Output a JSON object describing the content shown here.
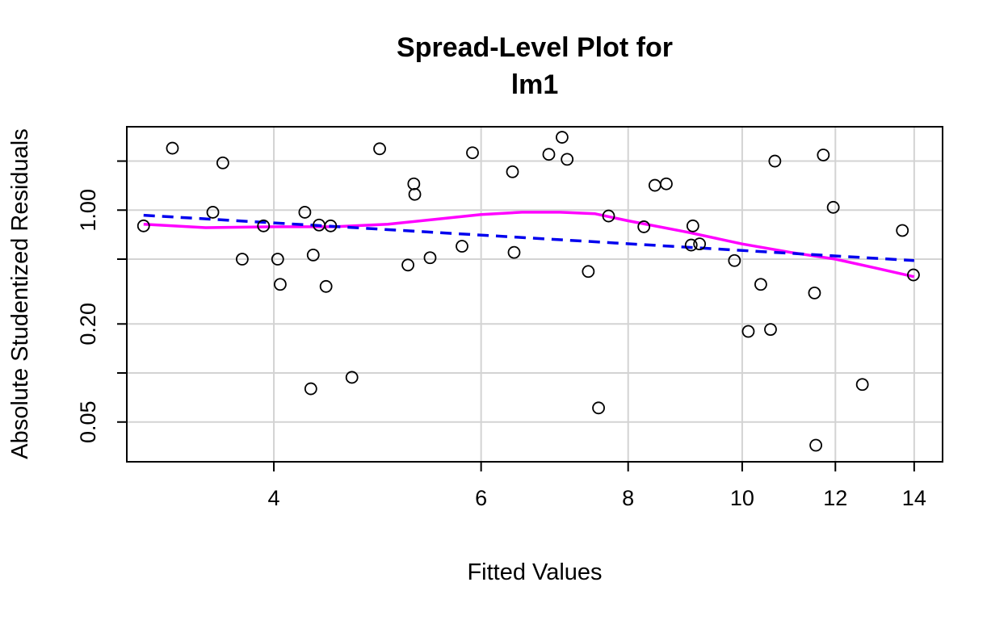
{
  "chart_data": {
    "type": "scatter",
    "title_lines": [
      "Spread-Level Plot for",
      "lm1"
    ],
    "xlabel": "Fitted Values",
    "ylabel": "Absolute Studentized Residuals",
    "x_scale": "log",
    "y_scale": "log",
    "xlim": [
      3.0,
      14.8
    ],
    "ylim": [
      0.0285,
      3.25
    ],
    "x_ticks": [
      4,
      6,
      8,
      10,
      12,
      14
    ],
    "y_ticks": [
      0.05,
      0.2,
      1.0
    ],
    "y_tick_labels": [
      "0.05",
      "0.20",
      "1.00"
    ],
    "y_grid": [
      0.05,
      0.1,
      0.2,
      0.5,
      1.0,
      2.0
    ],
    "x_grid": [
      4,
      6,
      8,
      10,
      12,
      14
    ],
    "grid": true,
    "colors": {
      "points": "#000000",
      "grid": "#d3d3d3",
      "fit_line": "#0000ee",
      "smooth_line": "#ff00ff"
    },
    "points": [
      [
        3.1,
        0.8
      ],
      [
        3.28,
        2.4
      ],
      [
        3.55,
        0.97
      ],
      [
        3.62,
        1.95
      ],
      [
        3.76,
        0.5
      ],
      [
        3.92,
        0.8
      ],
      [
        4.03,
        0.5
      ],
      [
        4.05,
        0.35
      ],
      [
        4.25,
        0.97
      ],
      [
        4.3,
        0.08
      ],
      [
        4.32,
        0.53
      ],
      [
        4.37,
        0.81
      ],
      [
        4.43,
        0.34
      ],
      [
        4.47,
        0.8
      ],
      [
        4.66,
        0.094
      ],
      [
        4.92,
        2.38
      ],
      [
        5.2,
        0.46
      ],
      [
        5.26,
        1.45
      ],
      [
        5.27,
        1.25
      ],
      [
        5.43,
        0.51
      ],
      [
        5.78,
        0.6
      ],
      [
        5.9,
        2.25
      ],
      [
        6.38,
        1.72
      ],
      [
        6.4,
        0.55
      ],
      [
        6.85,
        2.2
      ],
      [
        7.03,
        2.8
      ],
      [
        7.1,
        2.05
      ],
      [
        7.4,
        0.42
      ],
      [
        7.55,
        0.061
      ],
      [
        7.7,
        0.92
      ],
      [
        8.25,
        0.79
      ],
      [
        8.43,
        1.42
      ],
      [
        8.62,
        1.45
      ],
      [
        9.05,
        0.61
      ],
      [
        9.08,
        0.8
      ],
      [
        9.2,
        0.62
      ],
      [
        9.85,
        0.49
      ],
      [
        10.12,
        0.18
      ],
      [
        10.37,
        0.35
      ],
      [
        10.57,
        0.185
      ],
      [
        10.66,
        2.0
      ],
      [
        11.52,
        0.31
      ],
      [
        11.55,
        0.036
      ],
      [
        11.72,
        2.18
      ],
      [
        11.95,
        1.04
      ],
      [
        12.65,
        0.085
      ],
      [
        13.68,
        0.75
      ],
      [
        13.98,
        0.4
      ]
    ],
    "fit_line": [
      [
        3.1,
        0.93
      ],
      [
        14.0,
        0.49
      ]
    ],
    "smooth_line": [
      [
        3.1,
        0.82
      ],
      [
        3.5,
        0.78
      ],
      [
        4.0,
        0.79
      ],
      [
        4.5,
        0.79
      ],
      [
        5.0,
        0.82
      ],
      [
        5.5,
        0.88
      ],
      [
        6.0,
        0.94
      ],
      [
        6.5,
        0.97
      ],
      [
        7.0,
        0.97
      ],
      [
        7.5,
        0.95
      ],
      [
        8.0,
        0.86
      ],
      [
        9.0,
        0.73
      ],
      [
        10.0,
        0.62
      ],
      [
        11.0,
        0.55
      ],
      [
        12.0,
        0.5
      ],
      [
        13.0,
        0.44
      ],
      [
        14.0,
        0.39
      ]
    ]
  }
}
